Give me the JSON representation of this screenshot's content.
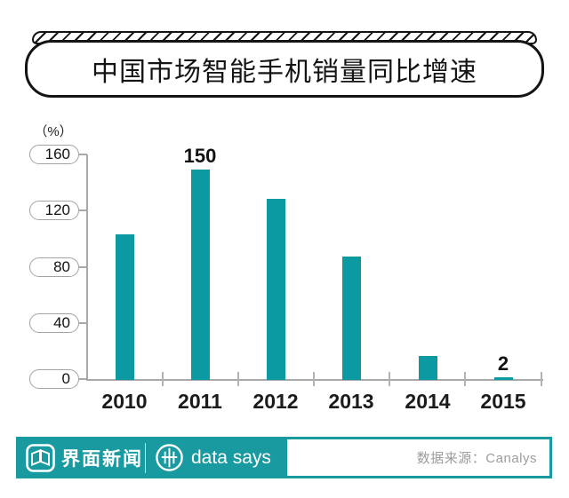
{
  "title": "中国市场智能手机销量同比增速",
  "chart_data": {
    "type": "bar",
    "title": "中国市场智能手机销量同比增速",
    "unit_label": "（%）",
    "categories": [
      "2010",
      "2011",
      "2012",
      "2013",
      "2014",
      "2015"
    ],
    "values": [
      104,
      150,
      129,
      88,
      17,
      2
    ],
    "bar_labels": [
      "",
      "150",
      "",
      "",
      "",
      "2"
    ],
    "y_ticks": [
      0,
      40,
      80,
      120,
      160
    ],
    "ylim": [
      0,
      160
    ],
    "grid": "off",
    "legend": "none",
    "bar_color": "#0c9aa2",
    "axis_color": "#a8a8a8"
  },
  "footer": {
    "brand": "界面新闻",
    "brand_icon": "jiemian-logo-icon",
    "product": "data says",
    "product_icon": "data-says-pulse-icon",
    "source_label": "数据来源：Canalys",
    "teal": "#189aa0"
  }
}
